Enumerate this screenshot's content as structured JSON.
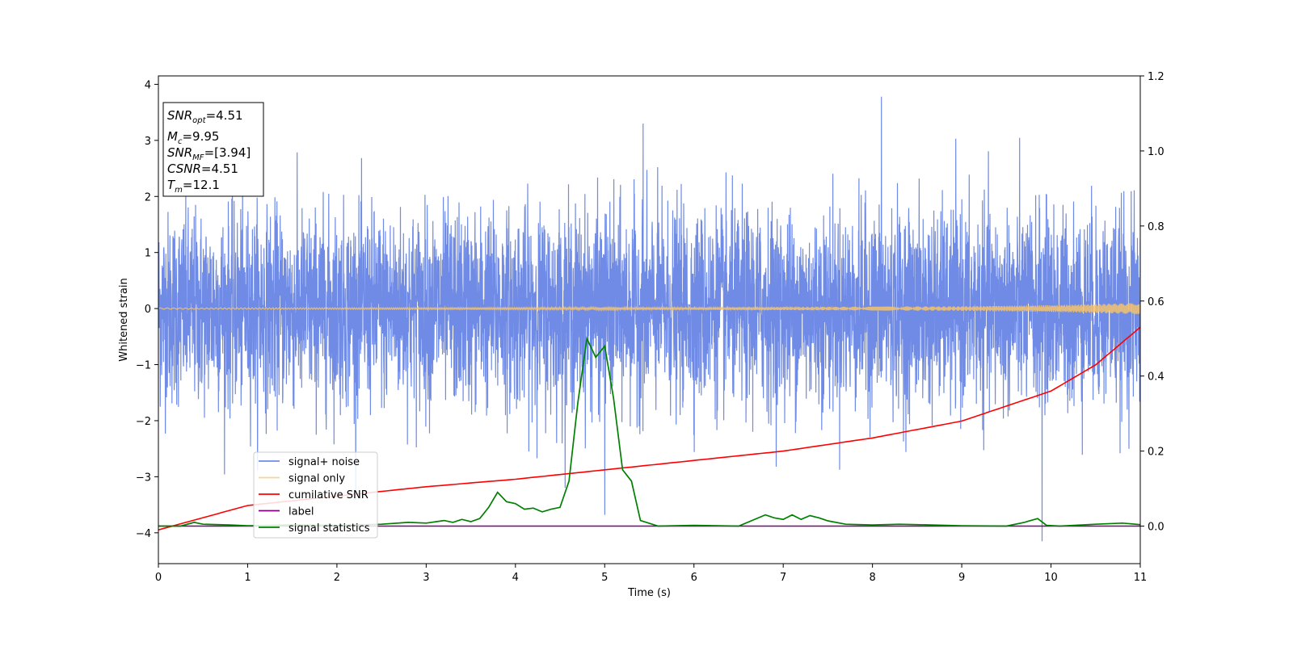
{
  "chart_data": {
    "type": "line",
    "title": "",
    "xlabel": "Time (s)",
    "ylabel": "Whitened strain",
    "y2label": "",
    "xlim": [
      0,
      11
    ],
    "ylim": [
      -4.55,
      4.15
    ],
    "y2lim": [
      -0.1,
      1.2
    ],
    "xticks": [
      "0",
      "1",
      "2",
      "3",
      "4",
      "5",
      "6",
      "7",
      "8",
      "9",
      "10",
      "11"
    ],
    "yticks": [
      "−4",
      "−3",
      "−2",
      "−1",
      "0",
      "1",
      "2",
      "3",
      "4"
    ],
    "y2ticks": [
      "0.0",
      "0.2",
      "0.4",
      "0.6",
      "0.8",
      "1.0",
      "1.2"
    ],
    "grid": false,
    "legend_placement": "lower-left",
    "colors": {
      "signal_noise": "#6f8be6",
      "signal_only": "#f5c26b",
      "cumulative_snr": "#ff0000",
      "label": "#800080",
      "signal_statistics": "#008000"
    },
    "series": [
      {
        "name": "signal+ noise",
        "axis": "left",
        "description_values": "white noise, approx. ±2 typical, extremes about +3.8 / −4.15",
        "peak_max": 3.78,
        "peak_min": -4.15
      },
      {
        "name": "signal only",
        "axis": "left",
        "x": [
          0,
          6,
          9,
          10,
          10.5,
          11
        ],
        "amplitude": [
          0.01,
          0.02,
          0.04,
          0.06,
          0.08,
          0.1
        ]
      },
      {
        "name": "cumilative SNR",
        "axis": "right",
        "x": [
          0,
          1,
          2,
          3,
          4,
          5,
          6,
          7,
          8,
          9,
          10,
          10.5,
          11
        ],
        "values": [
          -0.01,
          0.055,
          0.08,
          0.105,
          0.125,
          0.15,
          0.175,
          0.2,
          0.235,
          0.28,
          0.36,
          0.43,
          0.53
        ]
      },
      {
        "name": "label",
        "axis": "right",
        "x": [
          0,
          11
        ],
        "values": [
          0.0,
          0.0
        ]
      },
      {
        "name": "signal statistics",
        "axis": "right",
        "x": [
          0,
          0.25,
          0.4,
          0.5,
          0.8,
          1.0,
          1.5,
          2.0,
          2.5,
          2.8,
          3.0,
          3.2,
          3.3,
          3.4,
          3.5,
          3.6,
          3.7,
          3.8,
          3.9,
          4.0,
          4.1,
          4.2,
          4.3,
          4.4,
          4.5,
          4.6,
          4.7,
          4.8,
          4.9,
          5.0,
          5.1,
          5.2,
          5.3,
          5.4,
          5.6,
          6.0,
          6.5,
          6.8,
          6.9,
          7.0,
          7.1,
          7.2,
          7.3,
          7.4,
          7.5,
          7.7,
          8.0,
          8.3,
          8.5,
          9.0,
          9.5,
          9.7,
          9.85,
          9.95,
          10.1,
          10.5,
          10.8,
          11.0
        ],
        "values": [
          0.0,
          0.0,
          0.01,
          0.005,
          0.003,
          0.001,
          0.003,
          0.002,
          0.005,
          0.01,
          0.008,
          0.015,
          0.01,
          0.018,
          0.012,
          0.02,
          0.05,
          0.09,
          0.065,
          0.06,
          0.045,
          0.048,
          0.038,
          0.045,
          0.05,
          0.12,
          0.33,
          0.5,
          0.45,
          0.48,
          0.34,
          0.15,
          0.12,
          0.015,
          0.0,
          0.002,
          0.0,
          0.03,
          0.022,
          0.018,
          0.03,
          0.018,
          0.028,
          0.022,
          0.014,
          0.005,
          0.003,
          0.005,
          0.004,
          0.001,
          0.0,
          0.01,
          0.02,
          0.002,
          0.0,
          0.005,
          0.008,
          0.004
        ]
      }
    ],
    "legend": [
      "signal+ noise",
      "signal only",
      "cumilative SNR",
      "label",
      "signal statistics"
    ],
    "info_box": {
      "snr_opt": {
        "var": "SNR",
        "sub": "opt",
        "value": "=4.51"
      },
      "mc": {
        "var": "M",
        "sub": "c",
        "value": "=9.95"
      },
      "snr_mf": {
        "var": "SNR",
        "sub": "MF",
        "value": "=[3.94]"
      },
      "csnr": {
        "var": "CSNR",
        "sub": "",
        "value": "=4.51"
      },
      "tm": {
        "var": "T",
        "sub": "m",
        "value": "=12.1"
      }
    }
  }
}
